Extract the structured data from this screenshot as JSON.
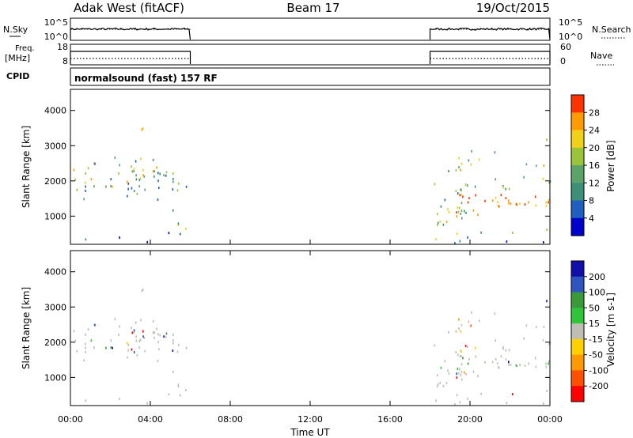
{
  "header": {
    "station": "Adak West (fitACF)",
    "beam": "Beam 17",
    "date": "19/Oct/2015"
  },
  "strips": {
    "noise": {
      "left_label": "N.Sky",
      "right_label": "N.Search",
      "left_ticks": [
        "10^5",
        "10^0"
      ],
      "right_ticks": [
        "10^5",
        "10^0"
      ]
    },
    "freq": {
      "left_label_1": "Freq.",
      "left_label_2": "[MHz]",
      "right_label": "Nave",
      "left_ticks": [
        "18",
        "8"
      ],
      "right_ticks": [
        "60",
        "0"
      ]
    },
    "cpid": {
      "left_label": "CPID",
      "text": "normalsound (fast) 157 RF"
    }
  },
  "x_axis": {
    "label": "Time UT",
    "ticks": [
      "00:00",
      "04:00",
      "08:00",
      "12:00",
      "16:00",
      "20:00",
      "00:00"
    ]
  },
  "colors": {
    "power_scale": [
      "#0000cc",
      "#1f5fbf",
      "#3d8f77",
      "#5aa46a",
      "#9ac43a",
      "#f0d018",
      "#ff9a00",
      "#ff3300"
    ],
    "velocity_scale": [
      "#ff0000",
      "#ff5000",
      "#ff9900",
      "#ffd000",
      "#bebeb4",
      "#2fc43a",
      "#3a9a3a",
      "#2f56c0",
      "#1010a8"
    ]
  },
  "chart_data": [
    {
      "type": "heatmap",
      "panel": "power",
      "ylabel": "Slant Range [km]",
      "xlabel": "",
      "y_ticks": [
        "1000",
        "2000",
        "3000",
        "4000"
      ],
      "ylim": [
        200,
        4600
      ],
      "xlim_hours": [
        0,
        24
      ],
      "colorbar_label": "Power [dB]",
      "colorbar_ticks": [
        "4",
        "8",
        "12",
        "16",
        "20",
        "24",
        "28"
      ],
      "data_windows_hours": [
        [
          0,
          6
        ],
        [
          18,
          24
        ]
      ]
    },
    {
      "type": "heatmap",
      "panel": "velocity",
      "ylabel": "Slant Range [km]",
      "xlabel": "Time UT",
      "y_ticks": [
        "1000",
        "2000",
        "3000",
        "4000"
      ],
      "ylim": [
        200,
        4600
      ],
      "xlim_hours": [
        0,
        24
      ],
      "colorbar_label": "Velocity [m s-1]",
      "colorbar_ticks": [
        "200",
        "100",
        "50",
        "15",
        "-15",
        "-50",
        "-100",
        "-200"
      ],
      "data_windows_hours": [
        [
          0,
          6
        ],
        [
          18,
          24
        ]
      ]
    }
  ]
}
